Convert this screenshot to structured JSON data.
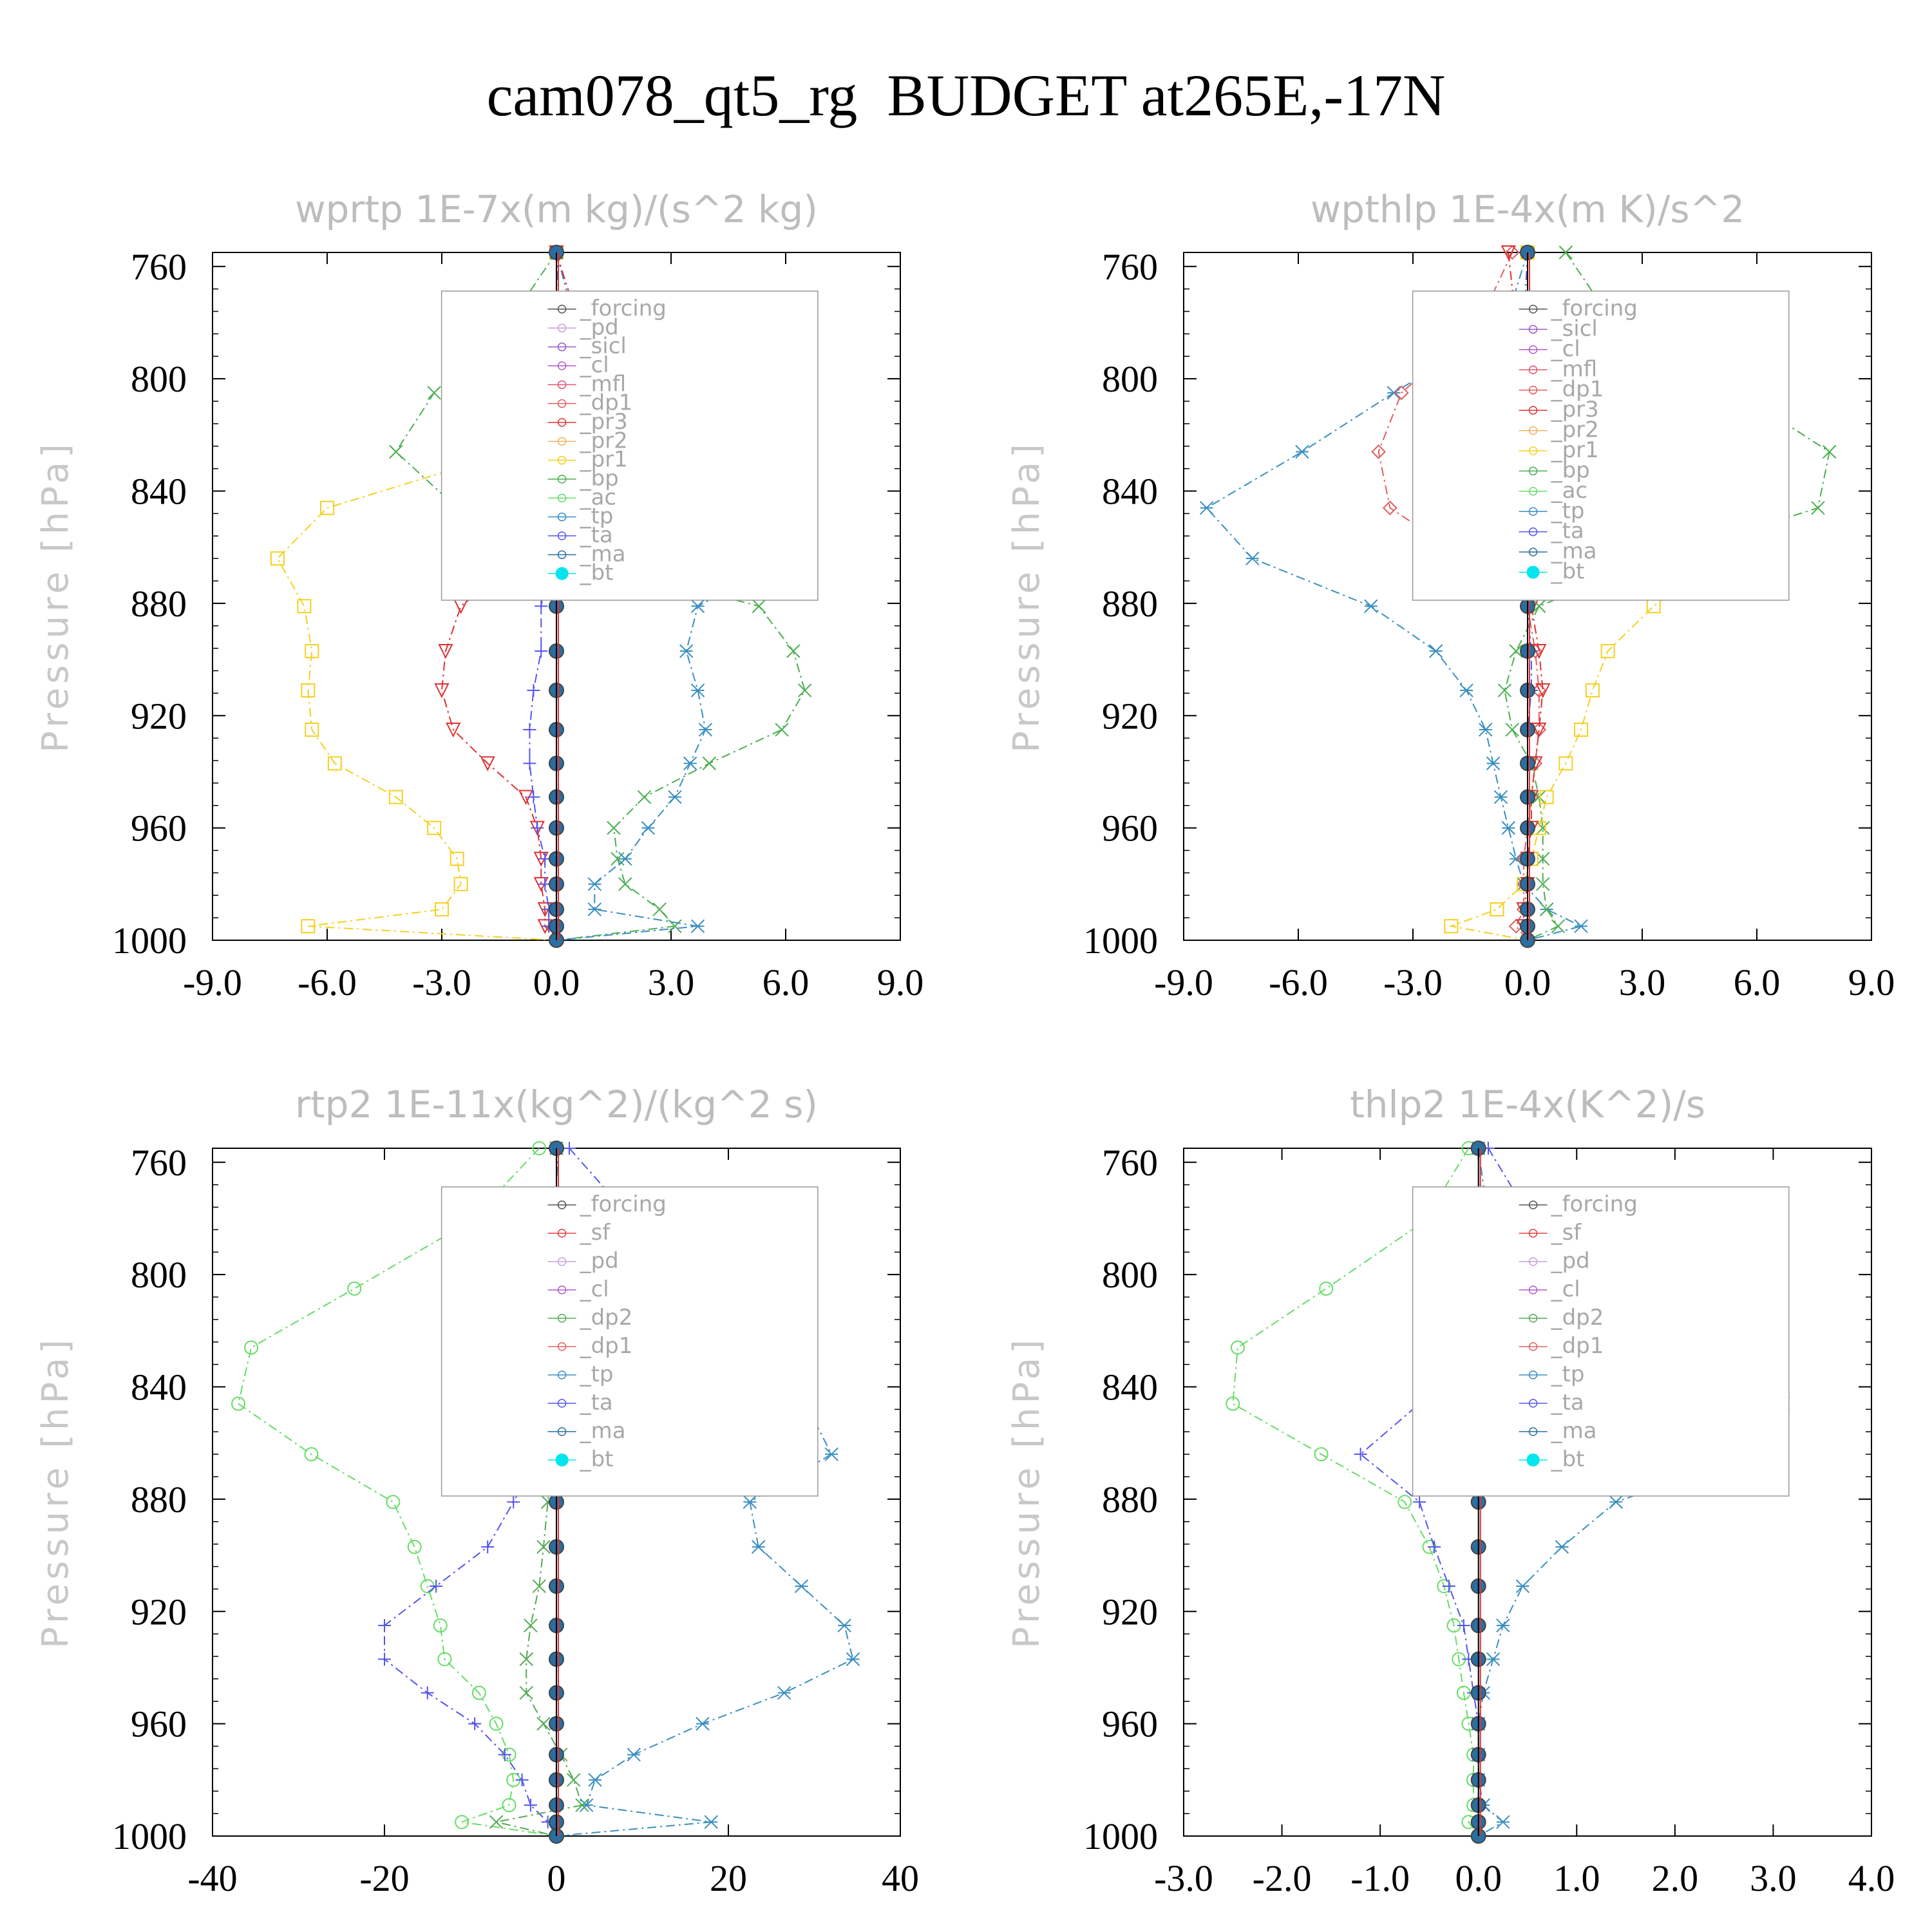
{
  "title": "cam078_qt5_rg  BUDGET at265E,-17N",
  "colors": {
    "forcing": "#555555",
    "pd": "#c9a0e0",
    "sicl": "#9b59c9",
    "cl": "#b05ac9",
    "mfl": "#e0556e",
    "dp1": "#e06060",
    "pr3": "#dd3333",
    "pr2": "#f0b060",
    "pr1": "#f5d020",
    "bp": "#4caf50",
    "ac": "#66dd66",
    "tp": "#3a8fc0",
    "ta": "#5555ee",
    "ma": "#2a6fa0",
    "bt": "#00e5ee",
    "sf": "#e04040",
    "pdo": "#f5a030",
    "clo": "#f5c518",
    "dp2": "#55aa55",
    "dp1g": "#70dd70"
  },
  "chart_data": [
    {
      "type": "line",
      "title": "wprtp  1E-7x(m kg)/(s^2 kg)",
      "ylabel": "Pressure [hPa]",
      "xlim": [
        -9,
        9
      ],
      "ylim": [
        1000,
        755
      ],
      "xticks": [
        "-9.0",
        "-6.0",
        "-3.0",
        "0.0",
        "3.0",
        "6.0",
        "9.0"
      ],
      "yticks": [
        "760",
        "800",
        "840",
        "880",
        "920",
        "960",
        "1000"
      ],
      "legend": [
        "_forcing",
        "_pd",
        "_sicl",
        "_cl",
        "_mfl",
        "_dp1",
        "_pr3",
        "_pr2",
        "_pr1",
        "_bp",
        "_ac",
        "_tp",
        "_ta",
        "_ma",
        "_bt"
      ],
      "levels": [
        755,
        781,
        805,
        826,
        846,
        864,
        881,
        897,
        911,
        925,
        937,
        949,
        960,
        971,
        980,
        989,
        995,
        1000
      ],
      "series": [
        {
          "name": "_pr1",
          "color": "pr1",
          "values": [
            0,
            0,
            0,
            -1.2,
            -6,
            -7.3,
            -6.6,
            -6.4,
            -6.5,
            -6.4,
            -5.8,
            -4.2,
            -3.2,
            -2.6,
            -2.5,
            -3.0,
            -6.5,
            0
          ]
        },
        {
          "name": "_bp",
          "color": "bp",
          "values": [
            0,
            -1.3,
            -3.2,
            -4.2,
            -2.6,
            0.5,
            5.3,
            6.2,
            6.5,
            5.9,
            4.0,
            2.3,
            1.5,
            1.6,
            1.8,
            2.7,
            3.1,
            0
          ]
        },
        {
          "name": "_tp",
          "color": "tp",
          "values": [
            0,
            0.5,
            1.8,
            4.0,
            6.5,
            6.1,
            3.7,
            3.4,
            3.7,
            3.9,
            3.5,
            3.1,
            2.4,
            1.8,
            1.0,
            1.0,
            3.7,
            0
          ]
        },
        {
          "name": "_pr3",
          "color": "pr3",
          "values": [
            0,
            0.6,
            1.5,
            1.9,
            1.1,
            -0.9,
            -2.5,
            -2.9,
            -3.0,
            -2.7,
            -1.8,
            -0.8,
            -0.5,
            -0.4,
            -0.4,
            -0.3,
            -0.3,
            0
          ]
        },
        {
          "name": "_ta",
          "color": "ta",
          "values": [
            0,
            0.1,
            0.4,
            0.6,
            0.4,
            -0.2,
            -0.4,
            -0.4,
            -0.6,
            -0.7,
            -0.7,
            -0.6,
            -0.5,
            -0.3,
            -0.3,
            -0.2,
            -0.2,
            0
          ]
        },
        {
          "name": "_bt",
          "color": "bt",
          "values": [
            0,
            0,
            0,
            0,
            0,
            0,
            0,
            0,
            0,
            0,
            0,
            0,
            0,
            0,
            0,
            0,
            0,
            0
          ]
        }
      ]
    },
    {
      "type": "line",
      "title": "wpthlp  1E-4x(m K)/s^2",
      "ylabel": "Pressure [hPa]",
      "xlim": [
        -9,
        9
      ],
      "ylim": [
        1000,
        755
      ],
      "xticks": [
        "-9.0",
        "-6.0",
        "-3.0",
        "0.0",
        "3.0",
        "6.0",
        "9.0"
      ],
      "yticks": [
        "760",
        "800",
        "840",
        "880",
        "920",
        "960",
        "1000"
      ],
      "legend": [
        "_forcing",
        "_sicl",
        "_cl",
        "_mfl",
        "_dp1",
        "_pr3",
        "_pr2",
        "_pr1",
        "_bp",
        "_ac",
        "_tp",
        "_ta",
        "_ma",
        "_bt"
      ],
      "levels": [
        755,
        781,
        805,
        826,
        846,
        864,
        881,
        897,
        911,
        925,
        937,
        949,
        960,
        971,
        980,
        989,
        995,
        1000
      ],
      "series": [
        {
          "name": "_tp",
          "color": "tp",
          "values": [
            0,
            -0.6,
            -3.5,
            -5.9,
            -8.4,
            -7.2,
            -4.1,
            -2.4,
            -1.6,
            -1.1,
            -0.9,
            -0.7,
            -0.5,
            -0.3,
            -0.1,
            0.5,
            1.4,
            0
          ]
        },
        {
          "name": "_dp1",
          "color": "dp1",
          "values": [
            -0.4,
            -1.3,
            -3.3,
            -3.9,
            -3.6,
            -1.6,
            0,
            0.2,
            0.3,
            0.3,
            0.2,
            0.1,
            0,
            -0.1,
            -0.1,
            -0.1,
            -0.3,
            0
          ]
        },
        {
          "name": "_bp",
          "color": "bp",
          "values": [
            1.0,
            2.3,
            5.5,
            7.9,
            7.6,
            3.4,
            0.3,
            -0.3,
            -0.6,
            -0.4,
            0.1,
            0.3,
            0.4,
            0.4,
            0.4,
            0.5,
            0.8,
            0
          ]
        },
        {
          "name": "_pr1",
          "color": "pr1",
          "values": [
            0,
            0,
            0.2,
            2.2,
            4.8,
            5.0,
            3.3,
            2.1,
            1.7,
            1.4,
            1.0,
            0.5,
            0.3,
            0.1,
            -0.1,
            -0.8,
            -2.0,
            0
          ]
        },
        {
          "name": "_pr3",
          "color": "pr3",
          "values": [
            -0.5,
            -0.3,
            -0.1,
            0,
            0,
            0,
            0.1,
            0.3,
            0.4,
            0.3,
            0.2,
            0.1,
            0.1,
            0,
            0,
            -0.1,
            -0.1,
            0
          ]
        },
        {
          "name": "_ta",
          "color": "ta",
          "values": [
            0,
            -0.1,
            -0.3,
            -0.5,
            -0.4,
            -0.2,
            0,
            0.1,
            0.1,
            0,
            0,
            0,
            0,
            0,
            0,
            0,
            0,
            0
          ]
        },
        {
          "name": "_bt",
          "color": "bt",
          "values": [
            0,
            0,
            0,
            0,
            0,
            0,
            0,
            0,
            0,
            0,
            0,
            0,
            0,
            0,
            0,
            0,
            0,
            0
          ]
        }
      ]
    },
    {
      "type": "line",
      "title": "rtp2  1E-11x(kg^2)/(kg^2 s)",
      "ylabel": "Pressure [hPa]",
      "xlim": [
        -40,
        40
      ],
      "ylim": [
        1000,
        755
      ],
      "xticks": [
        "-40",
        "-20",
        "0",
        "20",
        "40"
      ],
      "yticks": [
        "760",
        "800",
        "840",
        "880",
        "920",
        "960",
        "1000"
      ],
      "legend": [
        "_forcing",
        "_sf",
        "_pd",
        "_cl",
        "_dp2",
        "_dp1",
        "_tp",
        "_ta",
        "_ma",
        "_bt"
      ],
      "levels": [
        755,
        781,
        805,
        826,
        846,
        864,
        881,
        897,
        911,
        925,
        937,
        949,
        960,
        971,
        980,
        989,
        995,
        1000
      ],
      "series": [
        {
          "name": "_dp1",
          "color": "ac",
          "values": [
            -2,
            -10,
            -23.5,
            -35.5,
            -37,
            -28.5,
            -19,
            -16.5,
            -15,
            -13.5,
            -13,
            -9,
            -7,
            -5.5,
            -5,
            -5.5,
            -11,
            0
          ]
        },
        {
          "name": "_tp",
          "color": "tp",
          "values": [
            0,
            0.5,
            4,
            15,
            29,
            32,
            22.5,
            23.5,
            28.5,
            33.5,
            34.5,
            26.5,
            17,
            9,
            4.5,
            3.5,
            18,
            0
          ]
        },
        {
          "name": "_ta",
          "color": "ta",
          "values": [
            1.5,
            9,
            19,
            17,
            8,
            -2,
            -5,
            -8,
            -14,
            -20,
            -20,
            -15,
            -9.5,
            -6,
            -4,
            -3,
            -1,
            0
          ]
        },
        {
          "name": "_dp2",
          "color": "dp2",
          "values": [
            0,
            0,
            0,
            0,
            0,
            -0.5,
            -1,
            -1.5,
            -2,
            -3,
            -3.5,
            -3.5,
            -1.5,
            0.5,
            2,
            3,
            -7,
            0
          ]
        },
        {
          "name": "_bt",
          "color": "bt",
          "values": [
            0,
            0,
            0,
            0,
            0,
            0,
            0,
            0,
            0,
            0,
            0,
            0,
            0,
            0,
            0,
            0,
            0,
            0
          ]
        }
      ]
    },
    {
      "type": "line",
      "title": "thlp2  1E-4x(K^2)/s",
      "ylabel": "Pressure [hPa]",
      "xlim": [
        -3,
        4
      ],
      "ylim": [
        1000,
        755
      ],
      "xticks": [
        "-3.0",
        "-2.0",
        "-1.0",
        "0.0",
        "1.0",
        "2.0",
        "3.0",
        "4.0"
      ],
      "yticks": [
        "760",
        "800",
        "840",
        "880",
        "920",
        "960",
        "1000"
      ],
      "legend": [
        "_forcing",
        "_sf",
        "_pd",
        "_cl",
        "_dp2",
        "_dp1",
        "_tp",
        "_ta",
        "_ma",
        "_bt"
      ],
      "levels": [
        755,
        781,
        805,
        826,
        846,
        864,
        881,
        897,
        911,
        925,
        937,
        949,
        960,
        971,
        980,
        989,
        995,
        1000
      ],
      "series": [
        {
          "name": "_dp1",
          "color": "ac",
          "values": [
            -0.1,
            -0.55,
            -1.55,
            -2.45,
            -2.5,
            -1.6,
            -0.75,
            -0.5,
            -0.35,
            -0.25,
            -0.2,
            -0.15,
            -0.1,
            -0.05,
            -0.05,
            -0.05,
            -0.1,
            0
          ]
        },
        {
          "name": "_tp",
          "color": "tp",
          "values": [
            0,
            0.1,
            0.55,
            1.35,
            3.1,
            2.8,
            1.4,
            0.85,
            0.45,
            0.25,
            0.15,
            0.05,
            0,
            0,
            0,
            0.05,
            0.25,
            0
          ]
        },
        {
          "name": "_ta",
          "color": "ta",
          "values": [
            0.1,
            0.55,
            1.0,
            0.95,
            -0.6,
            -1.2,
            -0.6,
            -0.45,
            -0.3,
            -0.15,
            -0.1,
            -0.05,
            0,
            0,
            0,
            0,
            0,
            0
          ]
        },
        {
          "name": "_bt",
          "color": "bt",
          "values": [
            0,
            0,
            0,
            0,
            0,
            0,
            0,
            0,
            0,
            0,
            0,
            0,
            0,
            0,
            0,
            0,
            0,
            0
          ]
        }
      ]
    }
  ]
}
